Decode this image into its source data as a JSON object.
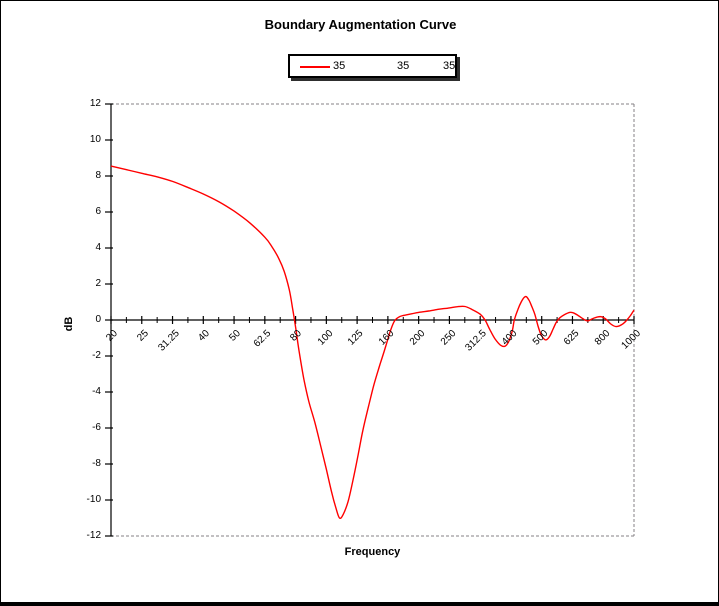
{
  "title": "Boundary Augmentation Curve",
  "legend": {
    "entries": [
      {
        "label": "35",
        "has_line": true,
        "line_color": "#ff0000"
      },
      {
        "label": "35",
        "has_line": false
      },
      {
        "label": "35",
        "has_line": false
      }
    ]
  },
  "colors": {
    "curve": "#ff0000",
    "axis": "#000000",
    "frame_dashed": "#848284",
    "background": "#ffffff",
    "legend_shadow": "#2e2e2e"
  },
  "chart_data": {
    "type": "line",
    "title": "Boundary Augmentation Curve",
    "xlabel": "Frequency",
    "ylabel": "dB",
    "x_scale": "log-third-octave-bands",
    "x_ticks": [
      20,
      25,
      31.25,
      40,
      50,
      62.5,
      80,
      100,
      125,
      160,
      200,
      250,
      312.5,
      400,
      500,
      625,
      800,
      1000
    ],
    "x_tick_labels": [
      "20",
      "25",
      "31.25",
      "40",
      "50",
      "62.5",
      "80",
      "100",
      "125",
      "160",
      "200",
      "250",
      "312.5",
      "400",
      "500",
      "625",
      "800",
      "1000"
    ],
    "ylim": [
      -12,
      12
    ],
    "y_ticks": [
      12,
      10,
      8,
      6,
      4,
      2,
      0,
      -2,
      -4,
      -6,
      -8,
      -10,
      -12
    ],
    "y_tick_labels": [
      "12",
      "10",
      "8",
      "6",
      "4",
      "2",
      "0",
      "-2",
      "-4",
      "-6",
      "-8",
      "-10",
      "-12"
    ],
    "grid": false,
    "minor_x_ticks_between_majors": 1,
    "legend_position": "top-center",
    "series": [
      {
        "name": "35",
        "color": "#ff0000",
        "points": [
          [
            20,
            8.55
          ],
          [
            22.4,
            8.35
          ],
          [
            25,
            8.15
          ],
          [
            28,
            7.95
          ],
          [
            31.25,
            7.7
          ],
          [
            35.5,
            7.35
          ],
          [
            40,
            7.0
          ],
          [
            45,
            6.55
          ],
          [
            50,
            6.05
          ],
          [
            56,
            5.4
          ],
          [
            62.5,
            4.6
          ],
          [
            66,
            4.1
          ],
          [
            70,
            3.4
          ],
          [
            73,
            2.7
          ],
          [
            76,
            1.7
          ],
          [
            78,
            0.7
          ],
          [
            80,
            -0.4
          ],
          [
            82,
            -1.7
          ],
          [
            85,
            -3.3
          ],
          [
            88,
            -4.5
          ],
          [
            92,
            -5.7
          ],
          [
            96,
            -7.0
          ],
          [
            100,
            -8.3
          ],
          [
            104,
            -9.6
          ],
          [
            107,
            -10.4
          ],
          [
            110,
            -11.0
          ],
          [
            113,
            -10.8
          ],
          [
            117,
            -10.1
          ],
          [
            121,
            -9.0
          ],
          [
            126,
            -7.5
          ],
          [
            131,
            -6.1
          ],
          [
            137,
            -4.8
          ],
          [
            143,
            -3.6
          ],
          [
            150,
            -2.5
          ],
          [
            157,
            -1.5
          ],
          [
            163,
            -0.6
          ],
          [
            168,
            -0.05
          ],
          [
            175,
            0.2
          ],
          [
            185,
            0.3
          ],
          [
            200,
            0.42
          ],
          [
            215,
            0.5
          ],
          [
            232,
            0.6
          ],
          [
            250,
            0.67
          ],
          [
            265,
            0.74
          ],
          [
            280,
            0.75
          ],
          [
            295,
            0.58
          ],
          [
            312.5,
            0.32
          ],
          [
            325,
            0.0
          ],
          [
            338,
            -0.55
          ],
          [
            352,
            -1.05
          ],
          [
            368,
            -1.4
          ],
          [
            382,
            -1.45
          ],
          [
            394,
            -1.15
          ],
          [
            404,
            -0.6
          ],
          [
            410,
            0.0
          ],
          [
            421,
            0.6
          ],
          [
            431,
            1.0
          ],
          [
            440,
            1.25
          ],
          [
            447,
            1.3
          ],
          [
            456,
            1.1
          ],
          [
            466,
            0.72
          ],
          [
            476,
            0.3
          ],
          [
            487,
            -0.35
          ],
          [
            497,
            -0.8
          ],
          [
            508,
            -1.05
          ],
          [
            517,
            -1.1
          ],
          [
            530,
            -0.9
          ],
          [
            543,
            -0.5
          ],
          [
            556,
            -0.12
          ],
          [
            570,
            0.12
          ],
          [
            590,
            0.3
          ],
          [
            612,
            0.42
          ],
          [
            628,
            0.4
          ],
          [
            650,
            0.28
          ],
          [
            675,
            0.1
          ],
          [
            705,
            -0.05
          ],
          [
            735,
            0.08
          ],
          [
            765,
            0.17
          ],
          [
            790,
            0.18
          ],
          [
            815,
            0.05
          ],
          [
            845,
            -0.22
          ],
          [
            875,
            -0.36
          ],
          [
            900,
            -0.32
          ],
          [
            925,
            -0.2
          ],
          [
            950,
            0.0
          ],
          [
            975,
            0.25
          ],
          [
            1000,
            0.55
          ]
        ]
      }
    ]
  }
}
